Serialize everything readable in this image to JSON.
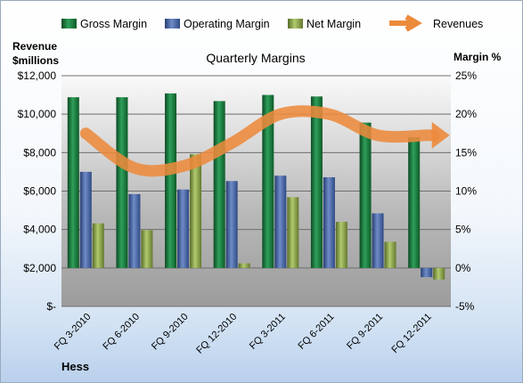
{
  "chart_data": {
    "type": "bar",
    "title": "Quarterly Margins",
    "footer_label": "Hess",
    "y_left_label_line1": "Revenue",
    "y_left_label_line2": "$millions",
    "y_right_label": "Margin %",
    "categories": [
      "FQ 3-2010",
      "FQ 6-2010",
      "FQ 9-2010",
      "FQ 12-2010",
      "FQ 3-2011",
      "FQ 6-2011",
      "FQ 9-2011",
      "FQ 12-2011"
    ],
    "y_left_ticks": [
      "$-",
      "$2,000",
      "$4,000",
      "$6,000",
      "$8,000",
      "$10,000",
      "$12,000"
    ],
    "y_left_lim": [
      0,
      12000
    ],
    "y_right_ticks": [
      "-5%",
      "0%",
      "5%",
      "10%",
      "15%",
      "20%",
      "25%"
    ],
    "y_right_lim": [
      -5,
      25
    ],
    "grid": true,
    "legend_position": "top",
    "series": [
      {
        "name": "Gross Margin",
        "type": "bar",
        "axis": "right",
        "color": "#1e7a3c",
        "values": [
          22.2,
          22.2,
          22.7,
          21.7,
          22.5,
          22.3,
          18.9,
          17.0
        ]
      },
      {
        "name": "Operating Margin",
        "type": "bar",
        "axis": "right",
        "color": "#4a6aa8",
        "values": [
          12.5,
          9.6,
          10.2,
          11.3,
          12.0,
          11.8,
          7.1,
          -1.2
        ]
      },
      {
        "name": "Net Margin",
        "type": "bar",
        "axis": "right",
        "color": "#8aaa4a",
        "values": [
          5.8,
          4.9,
          14.8,
          0.6,
          9.2,
          6.0,
          3.4,
          -1.5
        ]
      },
      {
        "name": "Revenues",
        "type": "line",
        "axis": "left",
        "color": "#ec8a3c",
        "values": [
          9000,
          7200,
          7300,
          8500,
          10000,
          10000,
          8900,
          8900
        ]
      }
    ]
  }
}
